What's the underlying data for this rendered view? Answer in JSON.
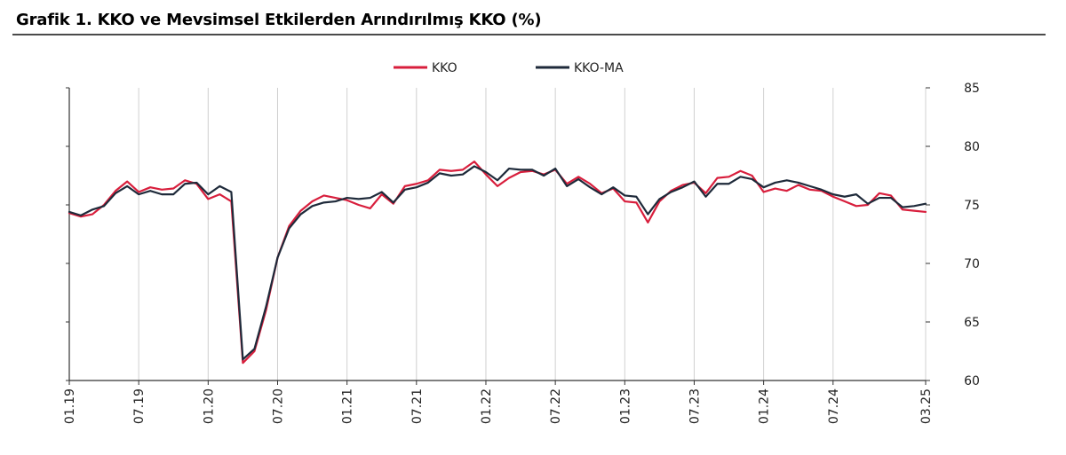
{
  "header": {
    "title": "Grafik 1. KKO ve Mevsimsel Etkilerden Arındırılmış KKO (%)"
  },
  "colors": {
    "kko": "#d81e3c",
    "kko_ma": "#1e2a3a",
    "grid": "#d0d0d0",
    "axis": "#333333"
  },
  "chart_data": {
    "type": "line",
    "title": "Grafik 1. KKO ve Mevsimsel Etkilerden Arındırılmış KKO (%)",
    "xlabel": "",
    "ylabel": "",
    "ylim": [
      60,
      85
    ],
    "yticks": [
      60,
      65,
      70,
      75,
      80,
      85
    ],
    "y_axis_side": "right",
    "grid": "vertical",
    "legend_position": "top-center",
    "x_tick_labels": [
      "01.19",
      "07.19",
      "01.20",
      "07.20",
      "01.21",
      "07.21",
      "01.22",
      "07.22",
      "01.23",
      "07.23",
      "01.24",
      "07.24",
      "03.25"
    ],
    "x_tick_indices": [
      0,
      6,
      12,
      18,
      24,
      30,
      36,
      42,
      48,
      54,
      60,
      66,
      74
    ],
    "x_start": "01.19",
    "x_end": "03.25",
    "series": [
      {
        "name": "KKO",
        "color": "#d81e3c",
        "values": [
          74.3,
          74.0,
          74.2,
          75.0,
          76.2,
          77.0,
          76.1,
          76.5,
          76.3,
          76.4,
          77.1,
          76.8,
          75.5,
          75.9,
          75.3,
          61.5,
          62.5,
          66.0,
          70.5,
          73.2,
          74.5,
          75.3,
          75.8,
          75.6,
          75.4,
          75.0,
          74.7,
          75.9,
          75.1,
          76.6,
          76.8,
          77.1,
          78.0,
          77.9,
          78.0,
          78.7,
          77.6,
          76.6,
          77.3,
          77.8,
          77.9,
          77.6,
          78.0,
          76.8,
          77.4,
          76.8,
          76.0,
          76.4,
          75.3,
          75.2,
          73.5,
          75.3,
          76.2,
          76.7,
          76.9,
          76.0,
          77.3,
          77.4,
          77.9,
          77.5,
          76.1,
          76.4,
          76.2,
          76.7,
          76.3,
          76.2,
          75.7,
          75.3,
          74.9,
          75.0,
          76.0,
          75.8,
          74.6,
          74.5,
          74.4
        ]
      },
      {
        "name": "KKO-MA",
        "color": "#1e2a3a",
        "values": [
          74.4,
          74.1,
          74.6,
          74.9,
          76.0,
          76.6,
          75.9,
          76.2,
          75.9,
          75.9,
          76.8,
          76.9,
          75.9,
          76.6,
          76.1,
          61.8,
          62.7,
          66.3,
          70.5,
          73.0,
          74.2,
          74.9,
          75.2,
          75.3,
          75.6,
          75.5,
          75.6,
          76.1,
          75.2,
          76.3,
          76.5,
          76.9,
          77.7,
          77.5,
          77.6,
          78.3,
          77.8,
          77.1,
          78.1,
          78.0,
          78.0,
          77.5,
          78.1,
          76.6,
          77.2,
          76.5,
          75.9,
          76.5,
          75.8,
          75.7,
          74.2,
          75.5,
          76.1,
          76.5,
          77.0,
          75.7,
          76.8,
          76.8,
          77.4,
          77.2,
          76.5,
          76.9,
          77.1,
          76.9,
          76.6,
          76.3,
          75.9,
          75.7,
          75.9,
          75.1,
          75.6,
          75.6,
          74.8,
          74.9,
          75.1
        ]
      }
    ]
  }
}
